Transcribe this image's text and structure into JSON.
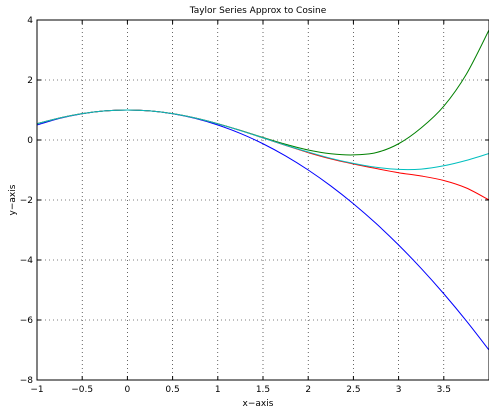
{
  "chart_data": {
    "type": "line",
    "title": "Taylor Series Approx to Cosine",
    "xlabel": "x−axis",
    "ylabel": "y−axis",
    "xlim": [
      -1,
      4
    ],
    "ylim": [
      -8,
      4
    ],
    "grid": true,
    "legend": "none",
    "xticks": [
      -1,
      -0.5,
      0,
      0.5,
      1,
      1.5,
      2,
      2.5,
      3,
      3.5
    ],
    "xtick_labels": [
      "−1",
      "−0.5",
      "0",
      "0.5",
      "1",
      "1.5",
      "2",
      "2.5",
      "3",
      "3.5"
    ],
    "yticks": [
      -8,
      -6,
      -4,
      -2,
      0,
      2,
      4
    ],
    "ytick_labels": [
      "−8",
      "−6",
      "−4",
      "−2",
      "0",
      "2",
      "4"
    ],
    "series": [
      {
        "color": "#0000ff",
        "x": [
          -1,
          -0.75,
          -0.5,
          -0.25,
          0,
          0.25,
          0.5,
          0.75,
          1,
          1.25,
          1.5,
          1.75,
          2,
          2.25,
          2.5,
          2.75,
          3,
          3.25,
          3.5,
          3.75,
          4
        ],
        "y": [
          0.5,
          0.72,
          0.875,
          0.969,
          1,
          0.969,
          0.875,
          0.719,
          0.5,
          0.219,
          -0.125,
          -0.531,
          -1.0,
          -1.531,
          -2.125,
          -2.781,
          -3.5,
          -4.281,
          -5.125,
          -6.031,
          -7.0
        ]
      },
      {
        "color": "#008000",
        "x": [
          -1,
          -0.75,
          -0.5,
          -0.25,
          0,
          0.25,
          0.5,
          0.75,
          1,
          1.25,
          1.5,
          1.75,
          2,
          2.25,
          2.5,
          2.75,
          3,
          3.25,
          3.5,
          3.75,
          4
        ],
        "y": [
          0.542,
          0.733,
          0.878,
          0.969,
          1,
          0.969,
          0.878,
          0.732,
          0.542,
          0.32,
          0.086,
          -0.141,
          -0.333,
          -0.458,
          -0.497,
          -0.421,
          -0.125,
          0.404,
          1.128,
          2.197,
          3.667
        ]
      },
      {
        "color": "#ff0000",
        "x": [
          -1,
          -0.75,
          -0.5,
          -0.25,
          0,
          0.25,
          0.5,
          0.75,
          1,
          1.25,
          1.5,
          1.75,
          2,
          2.25,
          2.5,
          2.75,
          3,
          3.25,
          3.5,
          3.75,
          4
        ],
        "y": [
          0.54,
          0.732,
          0.878,
          0.969,
          1,
          0.969,
          0.878,
          0.732,
          0.54,
          0.315,
          0.07,
          -0.18,
          -0.42,
          -0.63,
          -0.8,
          -0.95,
          -1.09,
          -1.2,
          -1.35,
          -1.6,
          -2.0
        ]
      },
      {
        "color": "#00bfbf",
        "x": [
          -1,
          -0.75,
          -0.5,
          -0.25,
          0,
          0.25,
          0.5,
          0.75,
          1,
          1.25,
          1.5,
          1.75,
          2,
          2.25,
          2.5,
          2.75,
          3,
          3.25,
          3.5,
          3.75,
          4
        ],
        "y": [
          0.54,
          0.732,
          0.878,
          0.969,
          1,
          0.969,
          0.878,
          0.732,
          0.54,
          0.315,
          0.071,
          -0.175,
          -0.4,
          -0.61,
          -0.78,
          -0.91,
          -0.98,
          -0.97,
          -0.86,
          -0.68,
          -0.45
        ]
      }
    ]
  }
}
